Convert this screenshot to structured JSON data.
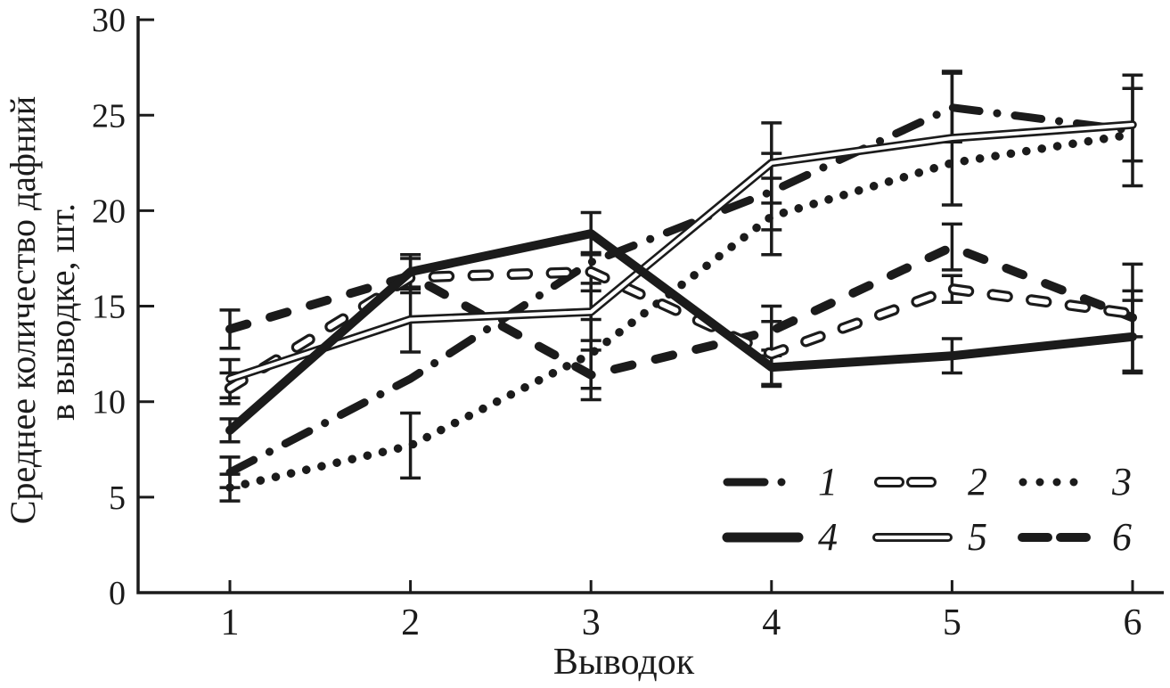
{
  "figure": {
    "background": "#ffffff",
    "ink": "#1b1b1b"
  },
  "chart_data": {
    "type": "line",
    "title": "",
    "xlabel": "Выводок",
    "ylabel": "Среднее количество дафний в выводке, шт.",
    "ylabel_lines": [
      "Среднее количество дафний",
      "в выводке, шт."
    ],
    "ylim": [
      0,
      30
    ],
    "xlim": [
      1,
      6
    ],
    "yticks": [
      0,
      5,
      10,
      15,
      20,
      25,
      30
    ],
    "xticks": [
      1,
      2,
      3,
      4,
      5,
      6
    ],
    "grid": false,
    "legend_position": "lower right",
    "error_bars_shown": true,
    "x": [
      1,
      2,
      3,
      4,
      5,
      6
    ],
    "series": [
      {
        "label": "1",
        "style": "dash_dot",
        "values": [
          6.3,
          11.2,
          17.3,
          21.0,
          25.4,
          24.2
        ],
        "error_bars": {
          "1": 0.8,
          "4": 2.0,
          "5": 1.8,
          "6": 2.9
        }
      },
      {
        "label": "2",
        "style": "hollow_dash",
        "values": [
          10.7,
          16.5,
          16.8,
          12.5,
          15.9,
          14.6
        ],
        "error_bars": {
          "1": 0.8,
          "3": 1.0,
          "4": 1.7,
          "5": 0.7,
          "6": 1.2
        }
      },
      {
        "label": "3",
        "style": "dotted",
        "values": [
          5.5,
          7.7,
          12.5,
          19.7,
          22.5,
          24.0
        ],
        "error_bars": {
          "1": 0.7,
          "2": 1.7,
          "3": 1.8,
          "4": 2.0
        }
      },
      {
        "label": "4",
        "style": "solid",
        "values": [
          8.5,
          16.8,
          18.8,
          11.8,
          12.4,
          13.4
        ],
        "error_bars": {
          "1": 0.6,
          "2": 0.9,
          "3": 1.1,
          "4": 0.9,
          "5": 0.9,
          "6": 1.9
        }
      },
      {
        "label": "5",
        "style": "hollow_solid",
        "values": [
          11.2,
          14.3,
          14.7,
          22.5,
          23.8,
          24.5
        ],
        "error_bars": {
          "1": 1.0,
          "2": 1.7,
          "3": 1.5,
          "4": 2.1,
          "5": 3.5,
          "6": 1.9
        }
      },
      {
        "label": "6",
        "style": "thick_dash",
        "values": [
          13.8,
          16.6,
          11.4,
          13.7,
          18.1,
          14.4
        ],
        "error_bars": {
          "1": 1.0,
          "2": 0.9,
          "3": 1.3,
          "4": 1.3,
          "5": 1.2,
          "6": 2.8
        }
      }
    ]
  }
}
